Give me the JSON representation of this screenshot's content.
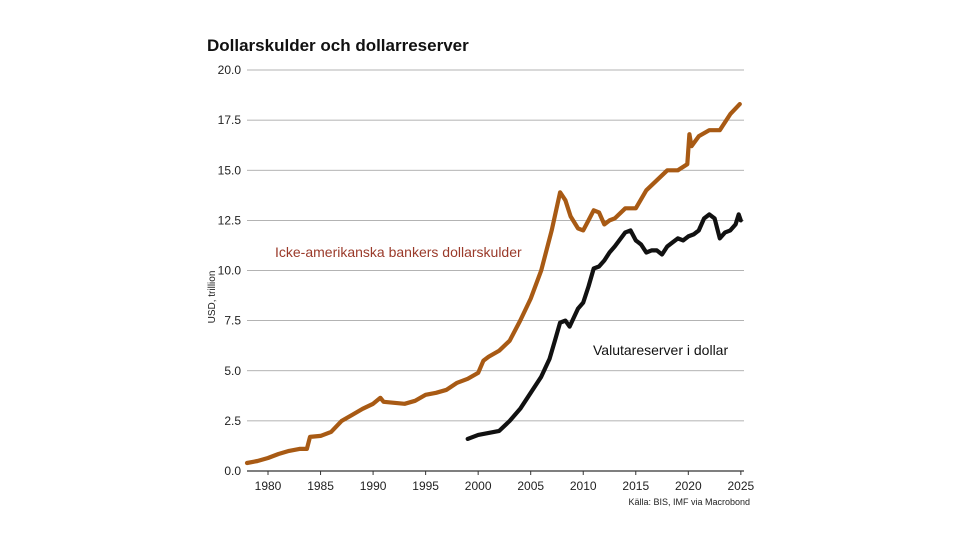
{
  "chart_data": {
    "type": "line",
    "title": "Dollarskulder och dollarreserver",
    "xlabel": "",
    "ylabel": "USD, trillion",
    "source": "Källa: BIS, IMF via Macrobond",
    "xlim": [
      1978,
      2025.3
    ],
    "ylim": [
      0,
      20
    ],
    "grid": true,
    "x_ticks": [
      "1980",
      "1985",
      "1990",
      "1995",
      "2000",
      "2005",
      "2010",
      "2015",
      "2020",
      "2025"
    ],
    "y_ticks": [
      "0.0",
      "2.5",
      "5.0",
      "7.5",
      "10.0",
      "12.5",
      "15.0",
      "17.5",
      "20.0"
    ],
    "series": [
      {
        "name": "Icke-amerikanska bankers dollarskulder",
        "color": "#a85a14",
        "label_color": "#9a3a2a",
        "x": [
          1978,
          1979,
          1980,
          1981,
          1982,
          1983,
          1983.7,
          1984,
          1985,
          1986,
          1987,
          1988,
          1989,
          1990,
          1990.7,
          1991,
          1992,
          1993,
          1994,
          1995,
          1996,
          1997,
          1998,
          1999,
          2000,
          2000.5,
          2001,
          2002,
          2003,
          2004,
          2005,
          2006,
          2007,
          2007.8,
          2008.3,
          2008.8,
          2009.5,
          2010,
          2010.5,
          2011,
          2011.5,
          2012,
          2012.5,
          2013,
          2014,
          2015,
          2016,
          2017,
          2018,
          2019,
          2019.9,
          2020.1,
          2020.3,
          2021,
          2022,
          2023,
          2024,
          2024.9
        ],
        "y": [
          0.4,
          0.5,
          0.65,
          0.85,
          1.0,
          1.1,
          1.1,
          1.7,
          1.75,
          1.95,
          2.5,
          2.8,
          3.1,
          3.35,
          3.65,
          3.45,
          3.4,
          3.35,
          3.5,
          3.8,
          3.9,
          4.05,
          4.4,
          4.6,
          4.9,
          5.5,
          5.7,
          6.0,
          6.5,
          7.5,
          8.6,
          10.0,
          12.0,
          13.9,
          13.5,
          12.7,
          12.1,
          12.0,
          12.5,
          13.0,
          12.9,
          12.3,
          12.5,
          12.6,
          13.1,
          13.1,
          14.0,
          14.5,
          15.0,
          15.0,
          15.3,
          16.8,
          16.2,
          16.7,
          17.0,
          17.0,
          17.8,
          18.3
        ]
      },
      {
        "name": "Valutareserver i dollar",
        "color": "#111111",
        "label_color": "#111111",
        "x": [
          1999,
          2000,
          2001,
          2002,
          2003,
          2004,
          2005,
          2006,
          2006.8,
          2007.3,
          2007.8,
          2008.3,
          2008.7,
          2009.5,
          2010,
          2010.5,
          2011,
          2011.5,
          2012,
          2012.5,
          2013,
          2014,
          2014.5,
          2015,
          2015.5,
          2016,
          2016.5,
          2017,
          2017.5,
          2018,
          2018.5,
          2019,
          2019.5,
          2020,
          2020.5,
          2021,
          2021.5,
          2022,
          2022.5,
          2023,
          2023.5,
          2024,
          2024.5,
          2024.8,
          2025
        ],
        "y": [
          1.6,
          1.8,
          1.9,
          2.0,
          2.5,
          3.1,
          3.9,
          4.7,
          5.6,
          6.5,
          7.4,
          7.5,
          7.2,
          8.1,
          8.4,
          9.2,
          10.1,
          10.2,
          10.5,
          10.9,
          11.2,
          11.9,
          12.0,
          11.5,
          11.3,
          10.9,
          11.0,
          11.0,
          10.8,
          11.2,
          11.4,
          11.6,
          11.5,
          11.7,
          11.8,
          12.0,
          12.6,
          12.8,
          12.6,
          11.6,
          11.9,
          12.0,
          12.3,
          12.8,
          12.5
        ]
      }
    ]
  }
}
